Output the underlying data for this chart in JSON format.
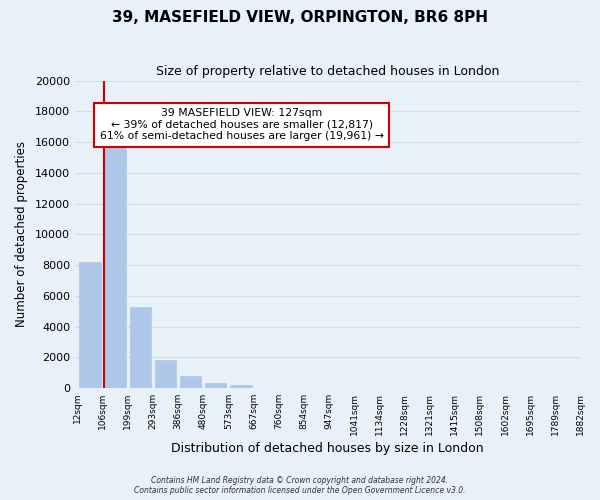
{
  "title": "39, MASEFIELD VIEW, ORPINGTON, BR6 8PH",
  "subtitle": "Size of property relative to detached houses in London",
  "xlabel": "Distribution of detached houses by size in London",
  "ylabel": "Number of detached properties",
  "bin_labels": [
    "12sqm",
    "106sqm",
    "199sqm",
    "293sqm",
    "386sqm",
    "480sqm",
    "573sqm",
    "667sqm",
    "760sqm",
    "854sqm",
    "947sqm",
    "1041sqm",
    "1134sqm",
    "1228sqm",
    "1321sqm",
    "1415sqm",
    "1508sqm",
    "1602sqm",
    "1695sqm",
    "1789sqm",
    "1882sqm"
  ],
  "bar_heights": [
    8200,
    16600,
    5300,
    1800,
    780,
    300,
    180,
    0,
    0,
    0,
    0,
    0,
    0,
    0,
    0,
    0,
    0,
    0,
    0,
    0
  ],
  "bar_color": "#aec6e8",
  "property_sqm": 127,
  "annotation_title": "39 MASEFIELD VIEW: 127sqm",
  "annotation_line1": "← 39% of detached houses are smaller (12,817)",
  "annotation_line2": "61% of semi-detached houses are larger (19,961) →",
  "ylim": [
    0,
    20000
  ],
  "yticks": [
    0,
    2000,
    4000,
    6000,
    8000,
    10000,
    12000,
    14000,
    16000,
    18000,
    20000
  ],
  "footer_line1": "Contains HM Land Registry data © Crown copyright and database right 2024.",
  "footer_line2": "Contains public sector information licensed under the Open Government Licence v3.0.",
  "red_line_color": "#cc0000",
  "annotation_box_color": "#ffffff",
  "annotation_box_edge": "#cc0000",
  "grid_color": "#ccddee",
  "background_color": "#e8f0f8"
}
